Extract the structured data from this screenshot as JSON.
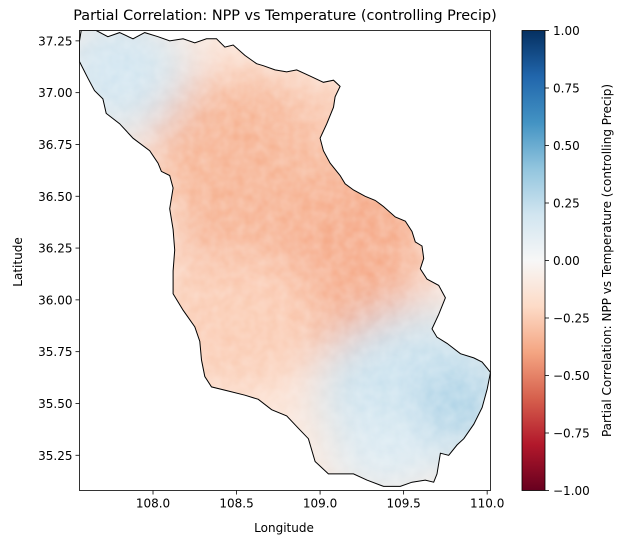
{
  "chart_data": {
    "type": "heatmap",
    "title": "Partial Correlation: NPP vs Temperature (controlling Precip)",
    "xlabel": "Longitude",
    "ylabel": "Latitude",
    "xlim": [
      107.56,
      110.02
    ],
    "ylim": [
      35.08,
      37.3
    ],
    "xticks": [
      108.0,
      108.5,
      109.0,
      109.5,
      110.0
    ],
    "xtick_labels": [
      "108.0",
      "108.5",
      "109.0",
      "109.5",
      "110.0"
    ],
    "yticks": [
      35.25,
      35.5,
      35.75,
      36.0,
      36.25,
      36.5,
      36.75,
      37.0,
      37.25
    ],
    "ytick_labels": [
      "35.25",
      "35.50",
      "35.75",
      "36.00",
      "36.25",
      "36.50",
      "36.75",
      "37.00",
      "37.25"
    ],
    "grid": false,
    "colorbar": {
      "label": "Partial Correlation: NPP vs Temperature (controlling Precip)",
      "colormap": "RdBu",
      "vmin": -1.0,
      "vmax": 1.0,
      "ticks": [
        -1.0,
        -0.75,
        -0.5,
        -0.25,
        0.0,
        0.25,
        0.5,
        0.75,
        1.0
      ],
      "tick_labels": [
        "−1.00",
        "−0.75",
        "−0.50",
        "−0.25",
        "0.00",
        "0.25",
        "0.50",
        "0.75",
        "1.00"
      ],
      "colors": [
        "#67001f",
        "#b2182b",
        "#d6604d",
        "#f4a582",
        "#fddbc7",
        "#f7f7f7",
        "#d1e5f0",
        "#92c5de",
        "#4393c3",
        "#2166ac",
        "#053061"
      ]
    },
    "boundary": [
      [
        107.57,
        37.3
      ],
      [
        107.66,
        37.3
      ],
      [
        107.73,
        37.27
      ],
      [
        107.8,
        37.29
      ],
      [
        107.88,
        37.26
      ],
      [
        107.95,
        37.29
      ],
      [
        108.03,
        37.27
      ],
      [
        108.1,
        37.25
      ],
      [
        108.18,
        37.26
      ],
      [
        108.25,
        37.24
      ],
      [
        108.32,
        37.26
      ],
      [
        108.38,
        37.26
      ],
      [
        108.43,
        37.22
      ],
      [
        108.48,
        37.23
      ],
      [
        108.55,
        37.18
      ],
      [
        108.62,
        37.14
      ],
      [
        108.66,
        37.13
      ],
      [
        108.73,
        37.11
      ],
      [
        108.8,
        37.1
      ],
      [
        108.86,
        37.11
      ],
      [
        108.94,
        37.08
      ],
      [
        109.02,
        37.05
      ],
      [
        109.08,
        37.06
      ],
      [
        109.12,
        37.03
      ],
      [
        109.09,
        36.98
      ],
      [
        109.08,
        36.93
      ],
      [
        109.04,
        36.85
      ],
      [
        109.0,
        36.78
      ],
      [
        109.02,
        36.72
      ],
      [
        109.06,
        36.66
      ],
      [
        109.12,
        36.6
      ],
      [
        109.15,
        36.56
      ],
      [
        109.2,
        36.53
      ],
      [
        109.27,
        36.5
      ],
      [
        109.33,
        36.48
      ],
      [
        109.38,
        36.45
      ],
      [
        109.45,
        36.4
      ],
      [
        109.51,
        36.38
      ],
      [
        109.55,
        36.33
      ],
      [
        109.57,
        36.28
      ],
      [
        109.61,
        36.26
      ],
      [
        109.62,
        36.2
      ],
      [
        109.6,
        36.15
      ],
      [
        109.64,
        36.1
      ],
      [
        109.71,
        36.07
      ],
      [
        109.75,
        36.01
      ],
      [
        109.71,
        35.93
      ],
      [
        109.67,
        35.86
      ],
      [
        109.7,
        35.82
      ],
      [
        109.76,
        35.79
      ],
      [
        109.84,
        35.74
      ],
      [
        109.92,
        35.72
      ],
      [
        109.97,
        35.7
      ],
      [
        110.0,
        35.67
      ],
      [
        110.02,
        35.65
      ],
      [
        110.0,
        35.57
      ],
      [
        109.97,
        35.48
      ],
      [
        109.92,
        35.4
      ],
      [
        109.86,
        35.33
      ],
      [
        109.82,
        35.3
      ],
      [
        109.77,
        35.25
      ],
      [
        109.72,
        35.26
      ],
      [
        109.7,
        35.16
      ],
      [
        109.68,
        35.12
      ],
      [
        109.63,
        35.13
      ],
      [
        109.55,
        35.12
      ],
      [
        109.48,
        35.1
      ],
      [
        109.38,
        35.1
      ],
      [
        109.28,
        35.13
      ],
      [
        109.2,
        35.16
      ],
      [
        109.05,
        35.16
      ],
      [
        108.97,
        35.22
      ],
      [
        108.93,
        35.33
      ],
      [
        108.87,
        35.38
      ],
      [
        108.8,
        35.44
      ],
      [
        108.71,
        35.47
      ],
      [
        108.63,
        35.52
      ],
      [
        108.55,
        35.54
      ],
      [
        108.45,
        35.56
      ],
      [
        108.35,
        35.58
      ],
      [
        108.31,
        35.63
      ],
      [
        108.29,
        35.71
      ],
      [
        108.28,
        35.8
      ],
      [
        108.25,
        35.87
      ],
      [
        108.18,
        35.95
      ],
      [
        108.12,
        36.03
      ],
      [
        108.12,
        36.14
      ],
      [
        108.13,
        36.24
      ],
      [
        108.12,
        36.34
      ],
      [
        108.1,
        36.44
      ],
      [
        108.12,
        36.54
      ],
      [
        108.1,
        36.6
      ],
      [
        108.05,
        36.62
      ],
      [
        108.03,
        36.66
      ],
      [
        107.98,
        36.72
      ],
      [
        107.88,
        36.78
      ],
      [
        107.8,
        36.85
      ],
      [
        107.72,
        36.9
      ],
      [
        107.7,
        36.97
      ],
      [
        107.65,
        37.01
      ],
      [
        107.61,
        37.07
      ],
      [
        107.56,
        37.15
      ],
      [
        107.56,
        37.25
      ],
      [
        107.57,
        37.3
      ]
    ],
    "value_regions": [
      {
        "lon": 108.9,
        "lat": 36.3,
        "r_lon": 0.75,
        "r_lat": 0.55,
        "value": -0.38
      },
      {
        "lon": 108.55,
        "lat": 36.7,
        "r_lon": 0.55,
        "r_lat": 0.4,
        "value": -0.35
      },
      {
        "lon": 108.5,
        "lat": 35.9,
        "r_lon": 0.5,
        "r_lat": 0.35,
        "value": -0.26
      },
      {
        "lon": 109.1,
        "lat": 36.85,
        "r_lon": 0.25,
        "r_lat": 0.2,
        "value": -0.28
      },
      {
        "lon": 107.8,
        "lat": 37.1,
        "r_lon": 0.4,
        "r_lat": 0.3,
        "value": 0.2
      },
      {
        "lon": 109.6,
        "lat": 35.55,
        "r_lon": 0.6,
        "r_lat": 0.4,
        "value": 0.22
      },
      {
        "lon": 109.8,
        "lat": 35.5,
        "r_lon": 0.2,
        "r_lat": 0.15,
        "value": 0.35
      },
      {
        "lon": 109.4,
        "lat": 35.25,
        "r_lon": 0.35,
        "r_lat": 0.2,
        "value": 0.15
      }
    ],
    "base_value": -0.12
  }
}
